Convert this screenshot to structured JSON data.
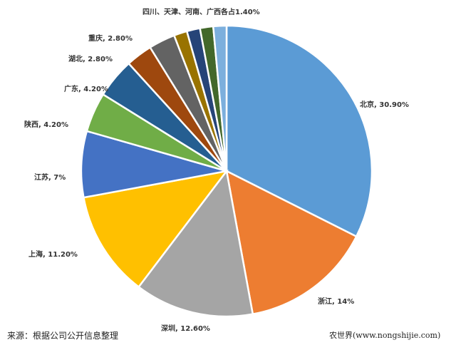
{
  "chart_data": {
    "type": "pie",
    "title": "",
    "start_angle": "12 o'clock",
    "direction": "clockwise",
    "slices": [
      {
        "label": "北京, 30.90%",
        "name": "北京",
        "value": 30.9,
        "color": "#5b9bd5"
      },
      {
        "label": "浙江, 14%",
        "name": "浙江",
        "value": 14,
        "color": "#ed7d31"
      },
      {
        "label": "深圳, 12.60%",
        "name": "深圳",
        "value": 12.6,
        "color": "#a5a5a5"
      },
      {
        "label": "上海, 11.20%",
        "name": "上海",
        "value": 11.2,
        "color": "#ffc000"
      },
      {
        "label": "江苏, 7%",
        "name": "江苏",
        "value": 7,
        "color": "#4472c4"
      },
      {
        "label": "陕西, 4.20%",
        "name": "陕西",
        "value": 4.2,
        "color": "#70ad47"
      },
      {
        "label": "广东, 4.20%",
        "name": "广东",
        "value": 4.2,
        "color": "#255e91"
      },
      {
        "label": "湖北, 2.80%",
        "name": "湖北",
        "value": 2.8,
        "color": "#9e480e"
      },
      {
        "label": "重庆, 2.80%",
        "name": "重庆",
        "value": 2.8,
        "color": "#636363"
      },
      {
        "label": "",
        "name": "四川",
        "value": 1.4,
        "color": "#997300"
      },
      {
        "label": "",
        "name": "天津",
        "value": 1.4,
        "color": "#264478"
      },
      {
        "label": "",
        "name": "河南",
        "value": 1.4,
        "color": "#43682b"
      },
      {
        "label": "",
        "name": "广西",
        "value": 1.4,
        "color": "#7cafdd"
      }
    ],
    "group_label": "四川、天津、河南、广西各占1.40%"
  },
  "footer": {
    "source": "来源：根据公司公开信息整理",
    "watermark": "农世界(www.nongshijie.com)"
  }
}
